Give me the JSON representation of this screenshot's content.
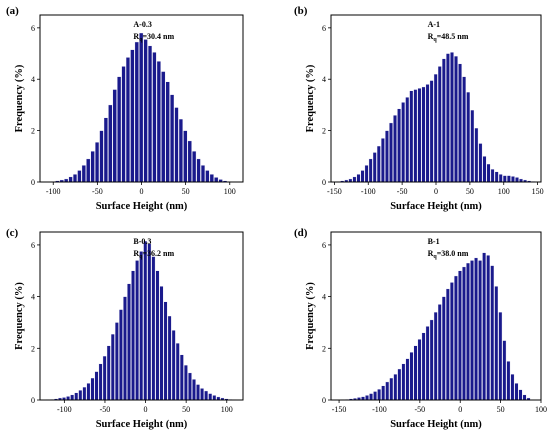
{
  "chart_data": [
    {
      "type": "bar",
      "panel_label": "(a)",
      "annotation_sample": "A-0.3",
      "annotation_rq": "R",
      "annotation_rq_sub": "q",
      "annotation_rq_value": "=30.4 nm",
      "xlabel": "Surface Height (nm)",
      "ylabel": "Frequency (%)",
      "xlim": [
        -115,
        115
      ],
      "ylim": [
        0,
        6.5
      ],
      "xticks": [
        -100,
        -50,
        0,
        50,
        100
      ],
      "yticks": [
        0,
        2,
        4,
        6
      ],
      "bin_width": 5,
      "bars_x": [
        -100,
        -95,
        -90,
        -85,
        -80,
        -75,
        -70,
        -65,
        -60,
        -55,
        -50,
        -45,
        -40,
        -35,
        -30,
        -25,
        -20,
        -15,
        -10,
        -5,
        0,
        5,
        10,
        15,
        20,
        25,
        30,
        35,
        40,
        45,
        50,
        55,
        60,
        65,
        70,
        75,
        80,
        85,
        90,
        95,
        100
      ],
      "bars_y": [
        0.02,
        0.05,
        0.08,
        0.12,
        0.2,
        0.3,
        0.45,
        0.65,
        0.9,
        1.2,
        1.55,
        2.0,
        2.5,
        3.0,
        3.6,
        4.1,
        4.5,
        4.85,
        5.15,
        5.45,
        5.8,
        5.55,
        5.3,
        5.05,
        4.7,
        4.3,
        3.9,
        3.4,
        2.9,
        2.45,
        2.0,
        1.6,
        1.2,
        0.9,
        0.65,
        0.45,
        0.3,
        0.18,
        0.1,
        0.05,
        0.02
      ]
    },
    {
      "type": "bar",
      "panel_label": "(b)",
      "annotation_sample": "A-1",
      "annotation_rq": "R",
      "annotation_rq_sub": "q",
      "annotation_rq_value": "=48.5 nm",
      "xlabel": "Surface Height (nm)",
      "ylabel": "Frequency (%)",
      "xlim": [
        -155,
        155
      ],
      "ylim": [
        0,
        6.5
      ],
      "xticks": [
        -150,
        -100,
        -50,
        0,
        50,
        100,
        150
      ],
      "yticks": [
        0,
        2,
        4,
        6
      ],
      "bin_width": 6,
      "bars_x": [
        -144,
        -138,
        -132,
        -126,
        -120,
        -114,
        -108,
        -102,
        -96,
        -90,
        -84,
        -78,
        -72,
        -66,
        -60,
        -54,
        -48,
        -42,
        -36,
        -30,
        -24,
        -18,
        -12,
        -6,
        0,
        6,
        12,
        18,
        24,
        30,
        36,
        42,
        48,
        54,
        60,
        66,
        72,
        78,
        84,
        90,
        96,
        102,
        108,
        114,
        120,
        126,
        132,
        138,
        144
      ],
      "bars_y": [
        0.02,
        0.05,
        0.08,
        0.12,
        0.2,
        0.3,
        0.45,
        0.65,
        0.9,
        1.15,
        1.4,
        1.7,
        2.0,
        2.3,
        2.6,
        2.85,
        3.1,
        3.3,
        3.55,
        3.6,
        3.65,
        3.7,
        3.8,
        3.95,
        4.2,
        4.5,
        4.8,
        5.0,
        5.05,
        4.9,
        4.6,
        4.1,
        3.5,
        2.8,
        2.1,
        1.5,
        1.0,
        0.7,
        0.5,
        0.4,
        0.3,
        0.25,
        0.25,
        0.22,
        0.18,
        0.12,
        0.08,
        0.05,
        0.03
      ]
    },
    {
      "type": "bar",
      "panel_label": "(c)",
      "annotation_sample": "B-0.3",
      "annotation_rq": "R",
      "annotation_rq_sub": "q",
      "annotation_rq_value": "=36.2 nm",
      "xlabel": "Surface Height (nm)",
      "ylabel": "Frequency (%)",
      "xlim": [
        -130,
        120
      ],
      "ylim": [
        0,
        6.5
      ],
      "xticks": [
        -100,
        -50,
        0,
        50,
        100
      ],
      "yticks": [
        0,
        2,
        4,
        6
      ],
      "bin_width": 5,
      "bars_x": [
        -120,
        -115,
        -110,
        -105,
        -100,
        -95,
        -90,
        -85,
        -80,
        -75,
        -70,
        -65,
        -60,
        -55,
        -50,
        -45,
        -40,
        -35,
        -30,
        -25,
        -20,
        -15,
        -10,
        -5,
        0,
        5,
        10,
        15,
        20,
        25,
        30,
        35,
        40,
        45,
        50,
        55,
        60,
        65,
        70,
        75,
        80,
        85,
        90,
        95,
        100,
        105,
        110,
        115
      ],
      "bars_y": [
        0.02,
        0.03,
        0.05,
        0.08,
        0.1,
        0.14,
        0.2,
        0.28,
        0.38,
        0.5,
        0.65,
        0.85,
        1.1,
        1.4,
        1.7,
        2.1,
        2.55,
        3.0,
        3.5,
        4.0,
        4.5,
        5.0,
        5.4,
        5.75,
        6.15,
        6.05,
        5.55,
        5.0,
        4.4,
        3.8,
        3.25,
        2.7,
        2.2,
        1.75,
        1.35,
        1.05,
        0.8,
        0.6,
        0.45,
        0.35,
        0.25,
        0.18,
        0.12,
        0.08,
        0.05,
        0.03,
        0.02,
        0.01
      ]
    },
    {
      "type": "bar",
      "panel_label": "(d)",
      "annotation_sample": "B-1",
      "annotation_rq": "R",
      "annotation_rq_sub": "q",
      "annotation_rq_value": "=38.0 nm",
      "xlabel": "Surface Height (nm)",
      "ylabel": "Frequency (%)",
      "xlim": [
        -160,
        100
      ],
      "ylim": [
        0,
        6.5
      ],
      "xticks": [
        -150,
        -100,
        -50,
        0,
        50,
        100
      ],
      "yticks": [
        0,
        2,
        4,
        6
      ],
      "bin_width": 5,
      "bars_x": [
        -145,
        -140,
        -135,
        -130,
        -125,
        -120,
        -115,
        -110,
        -105,
        -100,
        -95,
        -90,
        -85,
        -80,
        -75,
        -70,
        -65,
        -60,
        -55,
        -50,
        -45,
        -40,
        -35,
        -30,
        -25,
        -20,
        -15,
        -10,
        -5,
        0,
        5,
        10,
        15,
        20,
        25,
        30,
        35,
        40,
        45,
        50,
        55,
        60,
        65,
        70,
        75,
        80,
        85
      ],
      "bars_y": [
        0.02,
        0.03,
        0.05,
        0.07,
        0.1,
        0.13,
        0.18,
        0.25,
        0.33,
        0.42,
        0.55,
        0.7,
        0.85,
        1.0,
        1.2,
        1.4,
        1.6,
        1.85,
        2.1,
        2.35,
        2.6,
        2.85,
        3.1,
        3.4,
        3.7,
        4.0,
        4.3,
        4.55,
        4.8,
        5.0,
        5.15,
        5.3,
        5.4,
        5.5,
        5.4,
        5.7,
        5.6,
        5.2,
        4.4,
        3.4,
        2.3,
        1.5,
        1.0,
        0.65,
        0.4,
        0.2,
        0.08
      ]
    }
  ]
}
